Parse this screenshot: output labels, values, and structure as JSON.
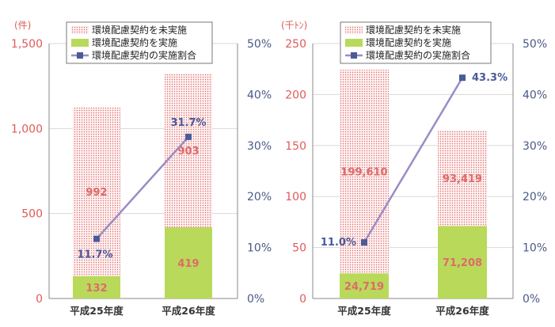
{
  "colors": {
    "unimplemented": "#e06a6a",
    "implemented": "#b9d95a",
    "ratio_line": "#9b8cc4",
    "ratio_marker": "#4a5a9a",
    "left_axis": "#e05a5a",
    "right_axis": "#4a5a86",
    "grid": "#d8d8d8"
  },
  "chart_data": [
    {
      "type": "bar",
      "stacked": true,
      "unit_label": "(件)",
      "categories": [
        "平成25年度",
        "平成26年度"
      ],
      "series": [
        {
          "name": "環境配慮契約を実施",
          "kind": "bar",
          "values": [
            132,
            419
          ],
          "value_labels": [
            "132",
            "419"
          ]
        },
        {
          "name": "環境配慮契約を未実施",
          "kind": "bar",
          "values": [
            992,
            903
          ],
          "value_labels": [
            "992",
            "903"
          ]
        },
        {
          "name": "環境配慮契約の実施割合",
          "kind": "line",
          "axis": "right",
          "values": [
            11.7,
            31.7
          ],
          "value_labels": [
            "11.7%",
            "31.7%"
          ]
        }
      ],
      "ylim": [
        0,
        1500
      ],
      "y_ticks": [
        0,
        500,
        1000,
        1500
      ],
      "y_tick_labels": [
        "0",
        "500",
        "1,000",
        "1,500"
      ],
      "y2lim": [
        0,
        50
      ],
      "y2_ticks": [
        0,
        10,
        20,
        30,
        40,
        50
      ],
      "y2_tick_labels": [
        "0%",
        "10%",
        "20%",
        "30%",
        "40%",
        "50%"
      ],
      "grid": true,
      "legend": "top"
    },
    {
      "type": "bar",
      "stacked": true,
      "unit_label": "(千ﾄﾝ)",
      "categories": [
        "平成25年度",
        "平成26年度"
      ],
      "series": [
        {
          "name": "環境配慮契約を実施",
          "kind": "bar",
          "values": [
            24.719,
            71.208
          ],
          "value_labels": [
            "24,719",
            "71,208"
          ]
        },
        {
          "name": "環境配慮契約を未実施",
          "kind": "bar",
          "values": [
            199.61,
            93.419
          ],
          "value_labels": [
            "199,610",
            "93,419"
          ]
        },
        {
          "name": "環境配慮契約の実施割合",
          "kind": "line",
          "axis": "right",
          "values": [
            11.0,
            43.3
          ],
          "value_labels": [
            "11.0%",
            "43.3%"
          ]
        }
      ],
      "ylim": [
        0,
        250
      ],
      "y_ticks": [
        0,
        50,
        100,
        150,
        200,
        250
      ],
      "y_tick_labels": [
        "0",
        "50",
        "100",
        "150",
        "200",
        "250"
      ],
      "y2lim": [
        0,
        50
      ],
      "y2_ticks": [
        0,
        10,
        20,
        30,
        40,
        50
      ],
      "y2_tick_labels": [
        "0%",
        "10%",
        "20%",
        "30%",
        "40%",
        "50%"
      ],
      "grid": true,
      "legend": "top"
    }
  ]
}
